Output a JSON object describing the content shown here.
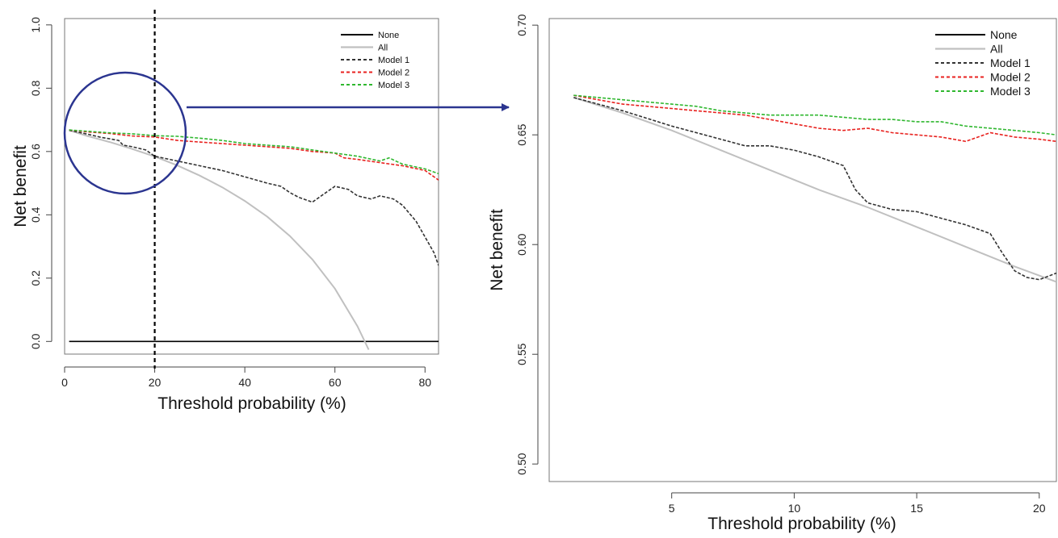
{
  "chart_data": [
    {
      "type": "line",
      "xlabel": "Threshold probability (%)",
      "ylabel": "Net benefit",
      "xlim": [
        0,
        83
      ],
      "ylim": [
        -0.04,
        1.02
      ],
      "xticks": [
        "0",
        "20",
        "40",
        "60",
        "80"
      ],
      "yticks": [
        "0.0",
        "0.2",
        "0.4",
        "0.6",
        "0.8",
        "1.0"
      ],
      "grid": false,
      "legend_position": "top-right",
      "reference_line_x": 20,
      "series": [
        {
          "name": "None",
          "color": "#000000",
          "dash": "solid",
          "x": [
            1,
            83
          ],
          "y": [
            0,
            0
          ]
        },
        {
          "name": "All",
          "color": "#c0c0c0",
          "dash": "solid",
          "x": [
            1,
            5,
            10,
            15,
            20,
            25,
            30,
            35,
            40,
            45,
            50,
            55,
            60,
            65,
            67.5
          ],
          "y": [
            0.667,
            0.649,
            0.63,
            0.608,
            0.584,
            0.556,
            0.524,
            0.487,
            0.444,
            0.394,
            0.333,
            0.259,
            0.167,
            0.048,
            -0.026
          ]
        },
        {
          "name": "Model 1",
          "color": "#333333",
          "dash": "dashed",
          "x": [
            1,
            5,
            8,
            10,
            12,
            13,
            15,
            18,
            20,
            25,
            30,
            35,
            40,
            45,
            48,
            50,
            52,
            55,
            58,
            60,
            63,
            65,
            68,
            70,
            73,
            75,
            78,
            80,
            82,
            83
          ],
          "y": [
            0.667,
            0.655,
            0.645,
            0.64,
            0.635,
            0.62,
            0.615,
            0.605,
            0.585,
            0.57,
            0.555,
            0.54,
            0.52,
            0.5,
            0.49,
            0.47,
            0.455,
            0.44,
            0.47,
            0.49,
            0.48,
            0.46,
            0.45,
            0.46,
            0.45,
            0.43,
            0.38,
            0.33,
            0.28,
            0.24
          ]
        },
        {
          "name": "Model 2",
          "color": "#e8221f",
          "dash": "dashed",
          "x": [
            1,
            5,
            10,
            15,
            20,
            25,
            30,
            35,
            40,
            45,
            50,
            55,
            60,
            62,
            65,
            70,
            75,
            80,
            83
          ],
          "y": [
            0.668,
            0.662,
            0.657,
            0.649,
            0.646,
            0.635,
            0.63,
            0.625,
            0.62,
            0.615,
            0.61,
            0.6,
            0.595,
            0.58,
            0.575,
            0.565,
            0.555,
            0.54,
            0.51
          ]
        },
        {
          "name": "Model 3",
          "color": "#2fb72f",
          "dash": "dashed",
          "x": [
            1,
            5,
            10,
            15,
            20,
            25,
            30,
            35,
            40,
            45,
            50,
            55,
            60,
            65,
            70,
            72,
            75,
            80,
            83
          ],
          "y": [
            0.668,
            0.664,
            0.659,
            0.656,
            0.65,
            0.648,
            0.642,
            0.635,
            0.625,
            0.62,
            0.615,
            0.605,
            0.595,
            0.585,
            0.57,
            0.58,
            0.56,
            0.545,
            0.53
          ]
        }
      ]
    },
    {
      "type": "line",
      "xlabel": "Threshold probability (%)",
      "ylabel": "Net benefit",
      "xlim": [
        0,
        20.7
      ],
      "ylim": [
        0.492,
        0.703
      ],
      "xticks": [
        "5",
        "10",
        "15",
        "20"
      ],
      "yticks": [
        "0.50",
        "0.55",
        "0.60",
        "0.65",
        "0.70"
      ],
      "grid": false,
      "legend_position": "top-right",
      "series": [
        {
          "name": "None",
          "color": "#000000",
          "dash": "solid",
          "x": [],
          "y": []
        },
        {
          "name": "All",
          "color": "#c0c0c0",
          "dash": "solid",
          "x": [
            1,
            3,
            5,
            7,
            9,
            11,
            13,
            15,
            17,
            19,
            20.7
          ],
          "y": [
            0.667,
            0.66,
            0.652,
            0.643,
            0.634,
            0.625,
            0.617,
            0.608,
            0.599,
            0.59,
            0.583
          ]
        },
        {
          "name": "Model 1",
          "color": "#333333",
          "dash": "dashed",
          "x": [
            1,
            3,
            5,
            7,
            8,
            9,
            10,
            11,
            12,
            12.5,
            13,
            14,
            15,
            16,
            17,
            18,
            18.5,
            19,
            19.5,
            20,
            20.7
          ],
          "y": [
            0.667,
            0.661,
            0.654,
            0.648,
            0.645,
            0.645,
            0.643,
            0.64,
            0.636,
            0.625,
            0.619,
            0.616,
            0.615,
            0.612,
            0.609,
            0.605,
            0.596,
            0.588,
            0.585,
            0.584,
            0.587
          ]
        },
        {
          "name": "Model 2",
          "color": "#e8221f",
          "dash": "dashed",
          "x": [
            1,
            2,
            3,
            4,
            5,
            6,
            7,
            8,
            9,
            10,
            11,
            12,
            13,
            14,
            15,
            16,
            17,
            18,
            19,
            20,
            20.7
          ],
          "y": [
            0.668,
            0.666,
            0.664,
            0.663,
            0.662,
            0.661,
            0.66,
            0.659,
            0.657,
            0.655,
            0.653,
            0.652,
            0.653,
            0.651,
            0.65,
            0.649,
            0.647,
            0.651,
            0.649,
            0.648,
            0.647
          ]
        },
        {
          "name": "Model 3",
          "color": "#2fb72f",
          "dash": "dashed",
          "x": [
            1,
            2,
            3,
            4,
            5,
            6,
            7,
            8,
            9,
            10,
            11,
            12,
            13,
            14,
            15,
            16,
            17,
            18,
            19,
            20,
            20.7
          ],
          "y": [
            0.668,
            0.667,
            0.666,
            0.665,
            0.664,
            0.663,
            0.661,
            0.66,
            0.659,
            0.659,
            0.659,
            0.658,
            0.657,
            0.657,
            0.656,
            0.656,
            0.654,
            0.653,
            0.652,
            0.651,
            0.65
          ]
        }
      ]
    }
  ]
}
